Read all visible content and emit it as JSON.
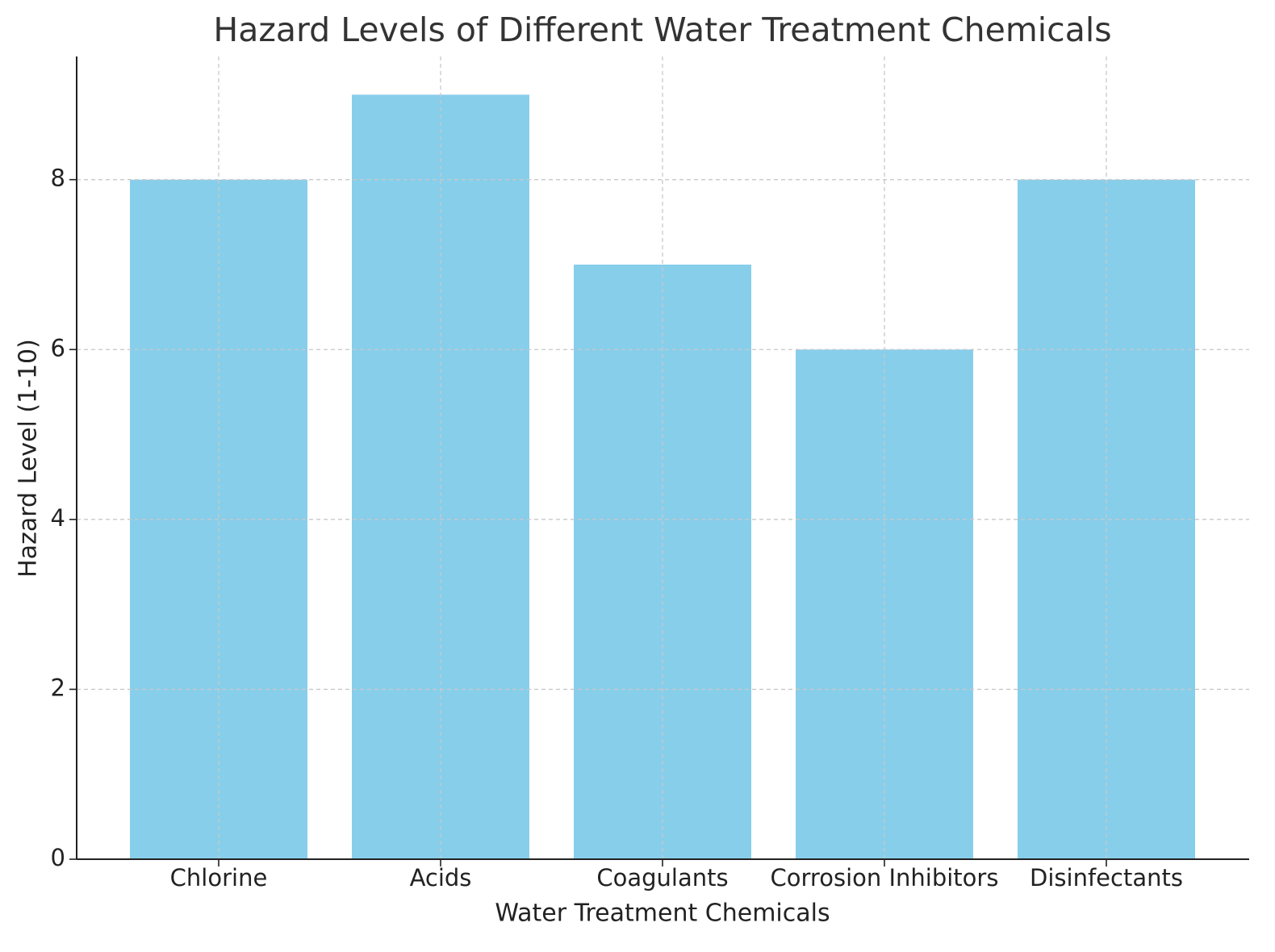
{
  "chart_data": {
    "type": "bar",
    "title": "Hazard Levels of Different Water Treatment Chemicals",
    "x_label": "Water Treatment Chemicals",
    "y_label": "Hazard Level (1-10)",
    "categories": [
      "Chlorine",
      "Acids",
      "Coagulants",
      "Corrosion Inhibitors",
      "Disinfectants"
    ],
    "values": [
      8,
      9,
      7,
      6,
      8
    ],
    "color": "#87ceeb",
    "ylim": [
      0,
      9.45
    ],
    "yticks": [
      0,
      2,
      4,
      6,
      8
    ],
    "grid": true
  }
}
